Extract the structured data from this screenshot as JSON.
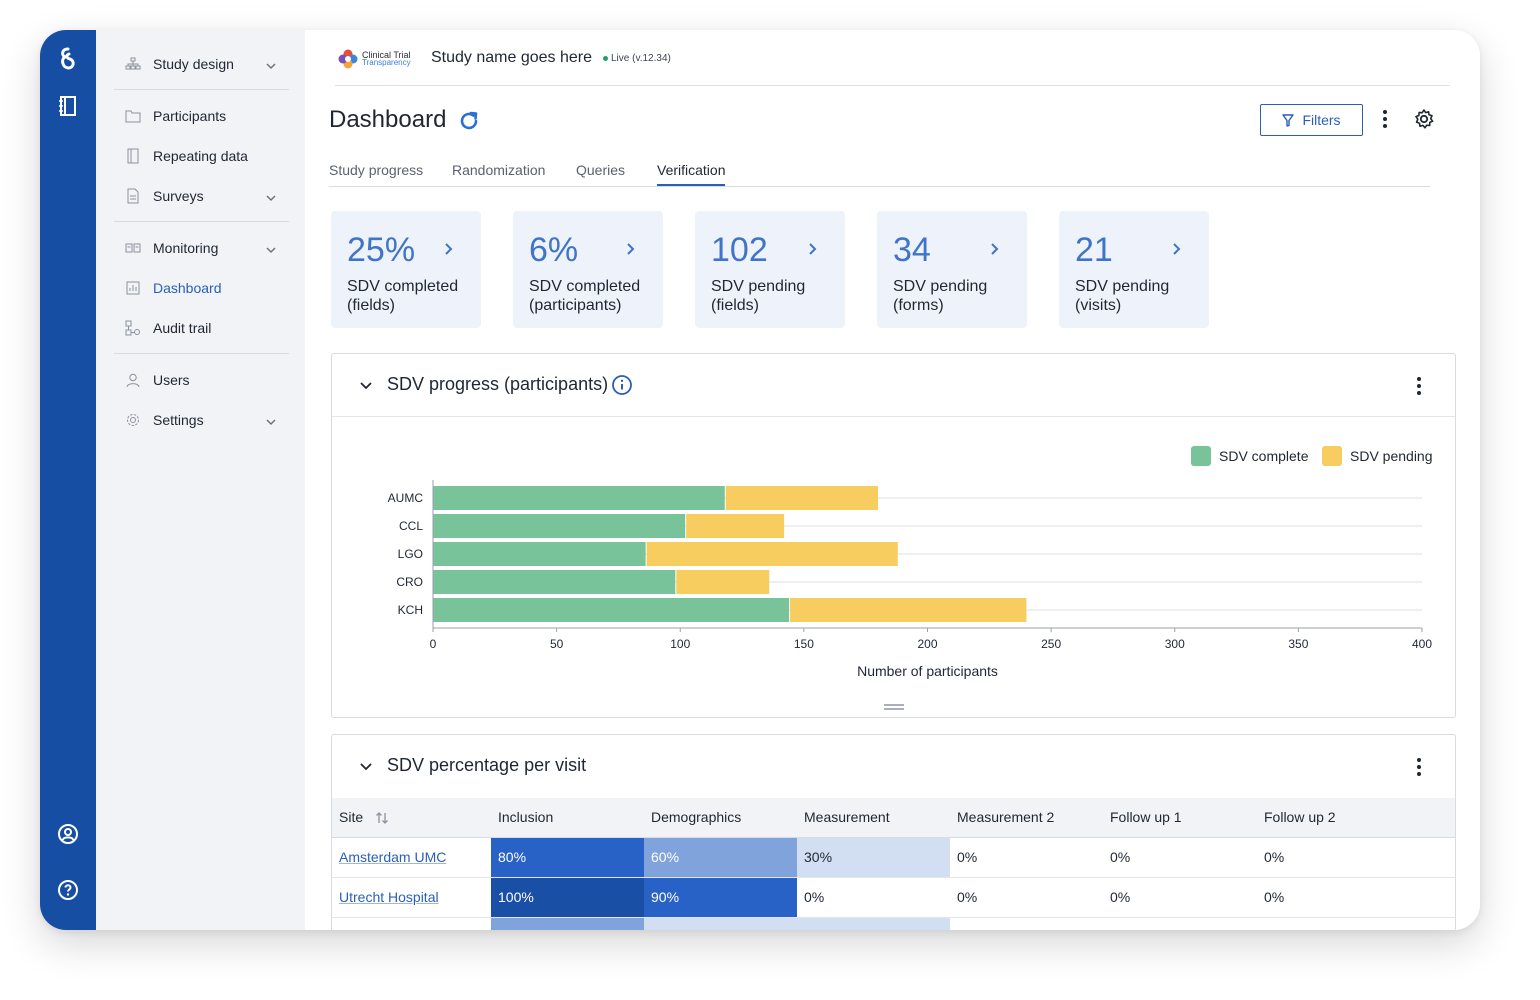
{
  "study": {
    "name": "Study name goes here",
    "status": "Live (v.12.34)",
    "logo_line1": "Clinical Trial",
    "logo_line2": "Transparency"
  },
  "nav": {
    "items": [
      {
        "label": "Study design",
        "icon": "hierarchy-icon",
        "has_chevron": true
      },
      {
        "label": "Participants",
        "icon": "folder-icon"
      },
      {
        "label": "Repeating data",
        "icon": "notebook-icon"
      },
      {
        "label": "Surveys",
        "icon": "document-icon",
        "has_chevron": true
      },
      {
        "label": "Monitoring",
        "icon": "monitoring-icon",
        "has_chevron": true
      },
      {
        "label": "Dashboard",
        "icon": "bar-chart-icon",
        "active": true
      },
      {
        "label": "Audit trail",
        "icon": "audit-icon"
      },
      {
        "label": "Users",
        "icon": "user-icon"
      },
      {
        "label": "Settings",
        "icon": "gear-icon",
        "has_chevron": true
      }
    ]
  },
  "page": {
    "title": "Dashboard",
    "filters_label": "Filters"
  },
  "tabs": [
    {
      "label": "Study progress"
    },
    {
      "label": "Randomization"
    },
    {
      "label": "Queries"
    },
    {
      "label": "Verification",
      "active": true
    }
  ],
  "stats": [
    {
      "value": "25%",
      "label": "SDV completed (fields)"
    },
    {
      "value": "6%",
      "label": "SDV completed (participants)"
    },
    {
      "value": "102",
      "label": "SDV pending (fields)"
    },
    {
      "value": "34",
      "label": "SDV pending (forms)"
    },
    {
      "value": "21",
      "label": "SDV pending (visits)"
    }
  ],
  "panel1": {
    "title": "SDV progress (participants)"
  },
  "panel2": {
    "title": "SDV percentage per visit"
  },
  "chart_data": {
    "type": "bar",
    "orientation": "horizontal",
    "stacked": true,
    "categories": [
      "AUMC",
      "CCL",
      "LGO",
      "CRO",
      "KCH"
    ],
    "series": [
      {
        "name": "SDV complete",
        "color": "#78c39a",
        "values": [
          118,
          102,
          86,
          98,
          144
        ]
      },
      {
        "name": "SDV pending",
        "color": "#f8cd5f",
        "values": [
          62,
          40,
          102,
          38,
          96
        ]
      }
    ],
    "xlabel": "Number of participants",
    "xlim": [
      0,
      400
    ],
    "xticks": [
      0,
      50,
      100,
      150,
      200,
      250,
      300,
      350,
      400
    ],
    "grid": true,
    "legend": "top-right"
  },
  "table": {
    "site_header": "Site",
    "columns": [
      "Inclusion",
      "Demographics",
      "Measurement",
      "Measurement 2",
      "Follow up  1",
      "Follow up  2"
    ],
    "rows": [
      {
        "site": "Amsterdam UMC",
        "values": [
          "80%",
          "60%",
          "30%",
          "0%",
          "0%",
          "0%"
        ],
        "levels": [
          80,
          60,
          30,
          0,
          0,
          0
        ]
      },
      {
        "site": "Utrecht Hospital",
        "values": [
          "100%",
          "90%",
          "0%",
          "0%",
          "0%",
          "0%"
        ],
        "levels": [
          100,
          90,
          0,
          0,
          0,
          0
        ]
      },
      {
        "site": "",
        "values": [
          "",
          "",
          "",
          "",
          "",
          ""
        ],
        "levels": [
          60,
          40,
          20,
          0,
          0,
          0
        ]
      }
    ]
  }
}
